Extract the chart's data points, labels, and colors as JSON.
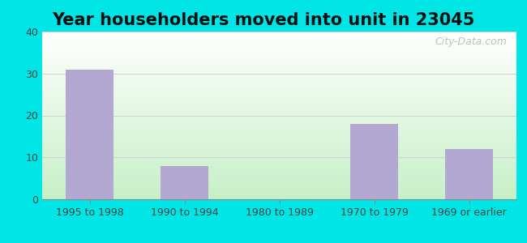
{
  "title": "Year householders moved into unit in 23045",
  "categories": [
    "1995 to 1998",
    "1990 to 1994",
    "1980 to 1989",
    "1970 to 1979",
    "1969 or earlier"
  ],
  "values": [
    31,
    8,
    0,
    18,
    12
  ],
  "bar_color": "#b3a8d1",
  "ylim": [
    0,
    40
  ],
  "yticks": [
    0,
    10,
    20,
    30,
    40
  ],
  "background_outer": "#00e5e5",
  "grid_color": "#d0d0d0",
  "title_fontsize": 15,
  "tick_fontsize": 9,
  "watermark": "City-Data.com"
}
